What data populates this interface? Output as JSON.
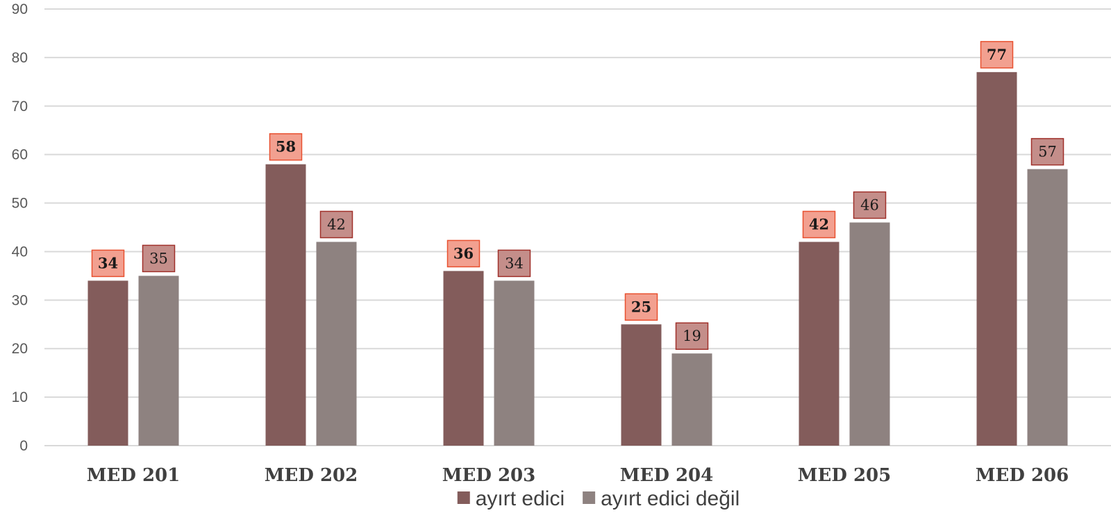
{
  "chart_data": {
    "type": "bar",
    "categories": [
      "MED 201",
      "MED 202",
      "MED 203",
      "MED 204",
      "MED 205",
      "MED 206"
    ],
    "series": [
      {
        "name": "ayırt edici",
        "values": [
          34,
          58,
          36,
          25,
          42,
          77
        ],
        "color": "#835C5B",
        "label_fill": "#F2A090",
        "label_stroke": "#E8502F"
      },
      {
        "name": "ayırt edici değil",
        "values": [
          35,
          42,
          34,
          19,
          46,
          57
        ],
        "color": "#8E8280",
        "label_fill": "#C48E8A",
        "label_stroke": "#A0302A"
      }
    ],
    "ylim": [
      0,
      90
    ],
    "yticks": [
      0,
      10,
      20,
      30,
      40,
      50,
      60,
      70,
      80,
      90
    ],
    "grid": true,
    "legend_position": "bottom",
    "grid_color": "#D9D9D9"
  }
}
